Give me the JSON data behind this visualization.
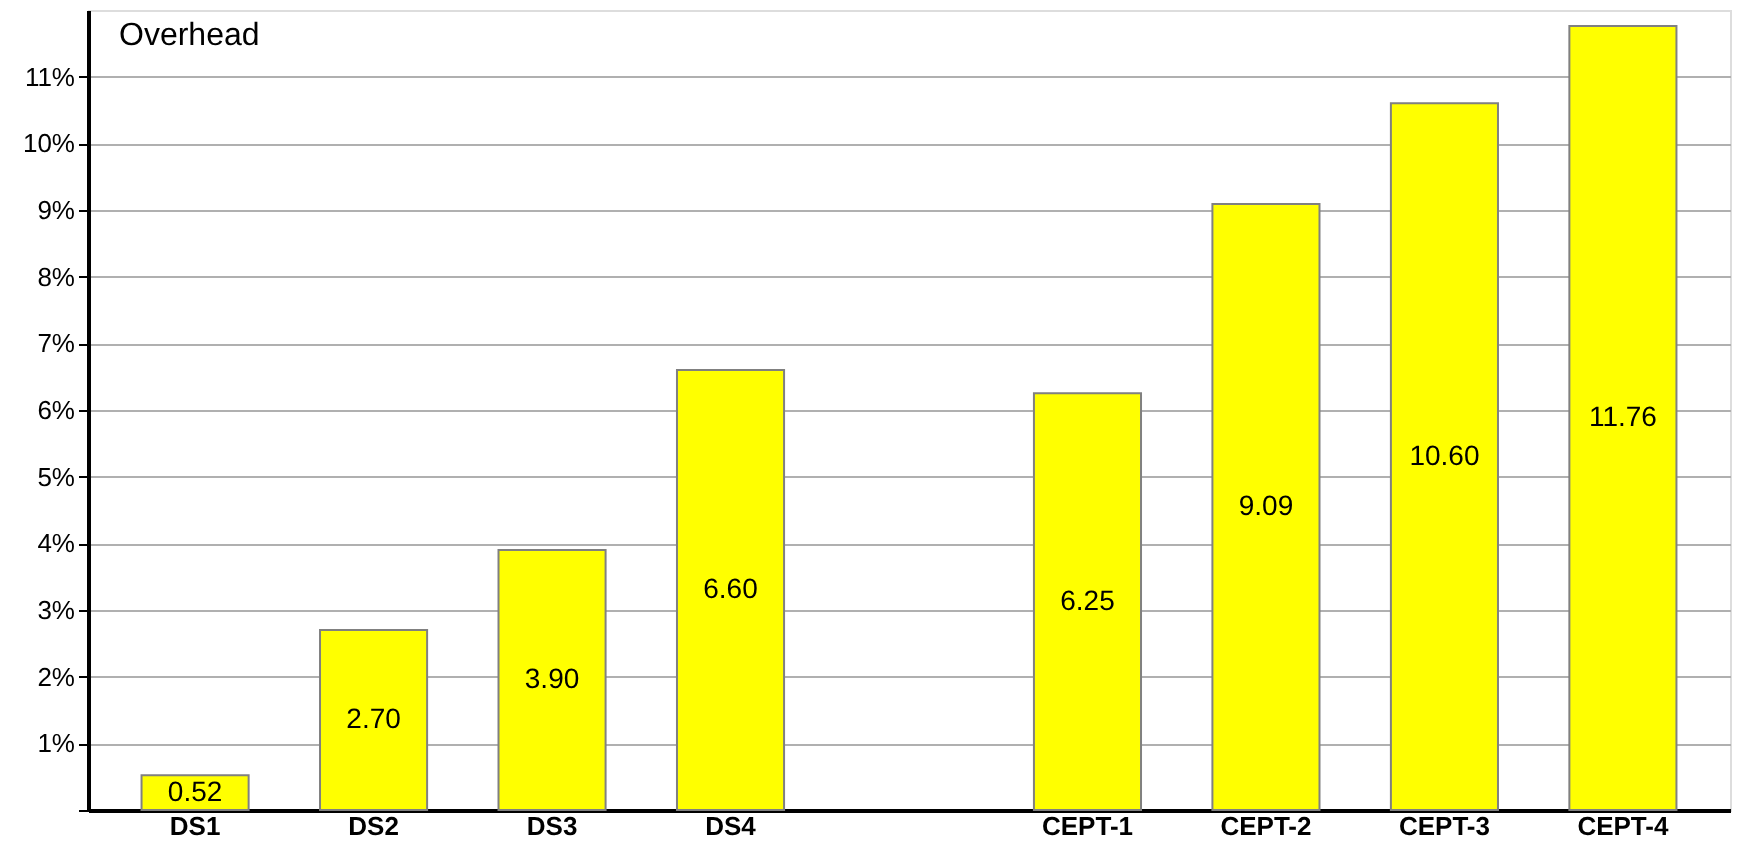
{
  "chart_data": {
    "type": "bar",
    "ylabel": "Overhead",
    "categories": [
      "DS1",
      "DS2",
      "DS3",
      "DS4",
      null,
      "CEPT-1",
      "CEPT-2",
      "CEPT-3",
      "CEPT-4"
    ],
    "values": [
      0.52,
      2.7,
      3.9,
      6.6,
      null,
      6.25,
      9.09,
      10.6,
      11.76
    ],
    "value_labels": [
      "0.52",
      "2.70",
      "3.90",
      "6.60",
      null,
      "6.25",
      "9.09",
      "10.60",
      "11.76"
    ],
    "color": "#ffff00",
    "ylim": [
      0,
      12
    ],
    "yticks": [
      {
        "value": 0,
        "label": null
      },
      {
        "value": 1,
        "label": "1%"
      },
      {
        "value": 2,
        "label": "2%"
      },
      {
        "value": 3,
        "label": "3%"
      },
      {
        "value": 4,
        "label": "4%"
      },
      {
        "value": 5,
        "label": "5%"
      },
      {
        "value": 6,
        "label": "6%"
      },
      {
        "value": 7,
        "label": "7%"
      },
      {
        "value": 8,
        "label": "8%"
      },
      {
        "value": 9,
        "label": "9%"
      },
      {
        "value": 10,
        "label": "10%"
      },
      {
        "value": 11,
        "label": "11%"
      }
    ],
    "grid": "y"
  }
}
